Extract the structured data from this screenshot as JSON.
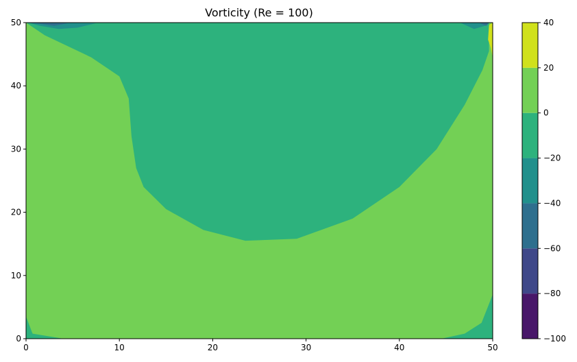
{
  "chart_data": {
    "type": "heatmap",
    "title": "Vorticity (Re = 100)",
    "xlabel": "",
    "ylabel": "",
    "xlim": [
      0,
      50
    ],
    "ylim": [
      0,
      50
    ],
    "x_ticks": [
      "0",
      "10",
      "20",
      "30",
      "40",
      "50"
    ],
    "y_ticks": [
      "0",
      "10",
      "20",
      "30",
      "40",
      "50"
    ],
    "grid": false,
    "colorbar": {
      "levels": [
        -100,
        -80,
        -60,
        -40,
        -20,
        0,
        20,
        40
      ],
      "tick_labels": [
        "−100",
        "−80",
        "−60",
        "−40",
        "−20",
        "0",
        "20",
        "40"
      ],
      "colors": [
        "#481769",
        "#3f4889",
        "#2e6f8e",
        "#21908c",
        "#2db27d",
        "#73d055",
        "#d0e11c"
      ]
    },
    "background_level_range": [
      0,
      20
    ],
    "regions": [
      {
        "level_range": [
          -20,
          0
        ],
        "description_boundary": [
          [
            0,
            50
          ],
          [
            2,
            48
          ],
          [
            7,
            44.5
          ],
          [
            10,
            41.5
          ],
          [
            11,
            38
          ],
          [
            11.3,
            32
          ],
          [
            11.8,
            27
          ],
          [
            12.6,
            24
          ],
          [
            15,
            20.5
          ],
          [
            19,
            17.2
          ],
          [
            23.5,
            15.5
          ],
          [
            29,
            15.8
          ],
          [
            35,
            19
          ],
          [
            40,
            24
          ],
          [
            44,
            30
          ],
          [
            47,
            37
          ],
          [
            48.9,
            42.5
          ],
          [
            49.6,
            45.5
          ],
          [
            49.6,
            50
          ]
        ]
      },
      {
        "level_range": [
          -20,
          0
        ],
        "description_boundary": [
          [
            0,
            3.5
          ],
          [
            0.7,
            0.8
          ],
          [
            4,
            0
          ],
          [
            0,
            0
          ]
        ]
      },
      {
        "level_range": [
          -20,
          0
        ],
        "description_boundary": [
          [
            44.5,
            0
          ],
          [
            47,
            0.8
          ],
          [
            48.8,
            2.5
          ],
          [
            49.6,
            5.5
          ],
          [
            50,
            7
          ],
          [
            50,
            0
          ]
        ]
      },
      {
        "level_range": [
          -40,
          -20
        ],
        "description_boundary": [
          [
            0.2,
            50
          ],
          [
            1.5,
            49.5
          ],
          [
            3.5,
            49
          ],
          [
            5.5,
            49.2
          ],
          [
            7.5,
            49.9
          ],
          [
            0.2,
            50
          ]
        ]
      },
      {
        "level_range": [
          -40,
          -20
        ],
        "description_boundary": [
          [
            46.5,
            50
          ],
          [
            48,
            49
          ],
          [
            49.4,
            49.6
          ],
          [
            49.6,
            50
          ]
        ]
      },
      {
        "level_range": [
          -60,
          -40
        ],
        "description_boundary": [
          [
            0.2,
            50
          ],
          [
            1.5,
            49.8
          ],
          [
            3,
            49.5
          ],
          [
            4.5,
            49.9
          ],
          [
            0.2,
            50
          ]
        ]
      },
      {
        "level_range": [
          -60,
          -40
        ],
        "description_boundary": [
          [
            48.5,
            50
          ],
          [
            49.3,
            49.5
          ],
          [
            49.6,
            50
          ]
        ]
      },
      {
        "level_range": [
          20,
          40
        ],
        "description_boundary": [
          [
            50,
            50
          ],
          [
            49.6,
            49.6
          ],
          [
            49.5,
            47.3
          ],
          [
            49.8,
            46
          ],
          [
            50,
            44.5
          ]
        ]
      }
    ]
  }
}
